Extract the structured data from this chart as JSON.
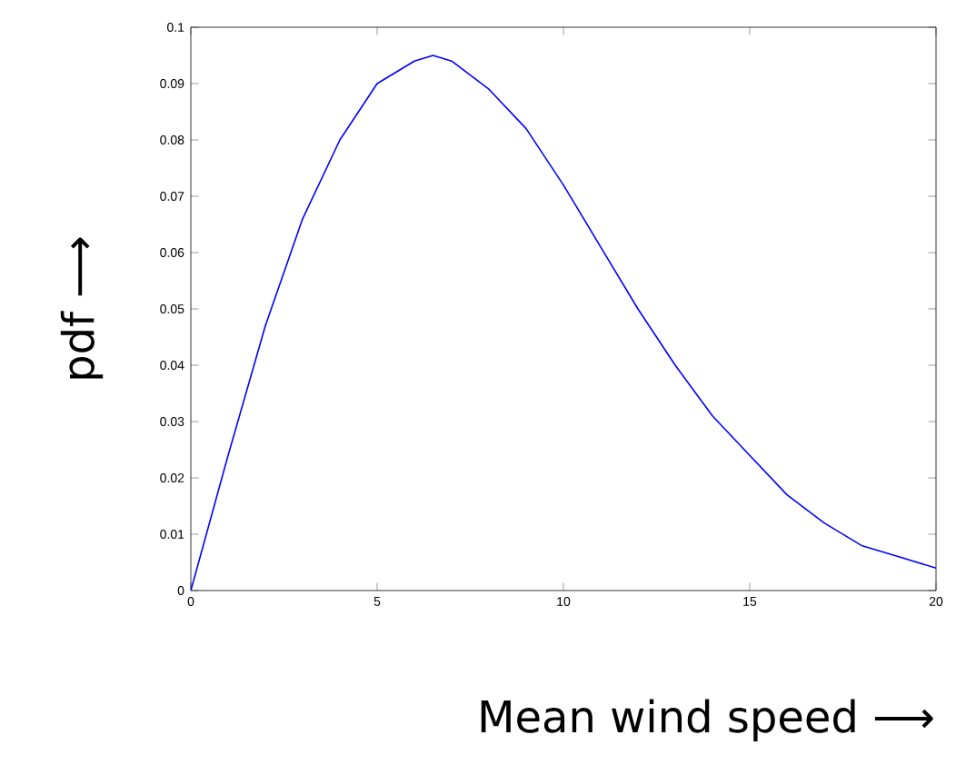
{
  "chart_data": {
    "type": "line",
    "xlabel": "Mean wind speed ⟶",
    "ylabel": "pdf ⟶",
    "x": [
      0,
      1,
      2,
      3,
      4,
      5,
      6,
      6.5,
      7,
      8,
      9,
      10,
      11,
      12,
      13,
      14,
      15,
      16,
      17,
      18,
      19,
      20
    ],
    "series": [
      {
        "color": "#0000ff",
        "values": [
          0,
          0.024,
          0.047,
          0.066,
          0.08,
          0.09,
          0.094,
          0.095,
          0.094,
          0.089,
          0.082,
          0.072,
          0.061,
          0.05,
          0.04,
          0.031,
          0.024,
          0.017,
          0.012,
          0.008,
          0.006,
          0.004
        ]
      }
    ],
    "xlim": [
      0,
      20
    ],
    "ylim": [
      0,
      0.1
    ],
    "xticks": [
      0,
      5,
      10,
      15,
      20
    ],
    "yticks": [
      0,
      0.01,
      0.02,
      0.03,
      0.04,
      0.05,
      0.06,
      0.07,
      0.08,
      0.09,
      0.1
    ],
    "grid": false,
    "marker": "none",
    "line_style": "solid"
  }
}
